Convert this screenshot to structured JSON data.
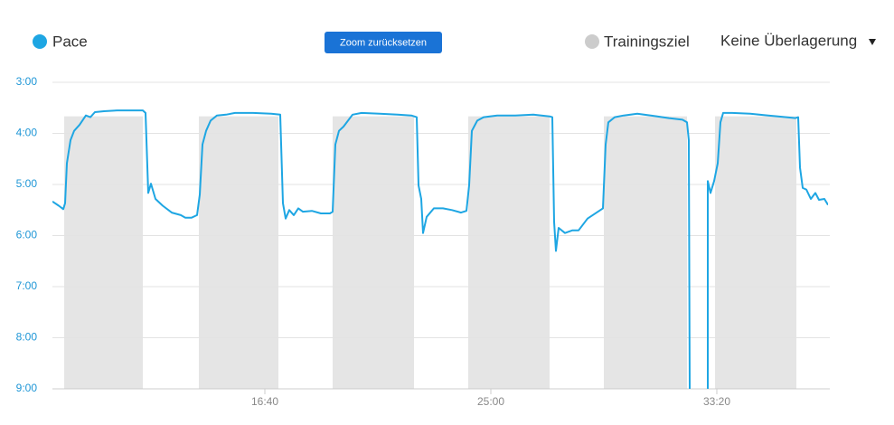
{
  "chart_data": {
    "type": "line",
    "zoom_button": "Zoom zurücksetzen",
    "overlay_select": "Keine Überlagerung",
    "xlim": [
      530,
      2246
    ],
    "xticks": [
      {
        "value": 1000,
        "label": "16:40"
      },
      {
        "value": 1500,
        "label": "25:00"
      },
      {
        "value": 2000,
        "label": "33:20"
      }
    ],
    "ylim": [
      180,
      540
    ],
    "y_inverted": true,
    "yticks": [
      {
        "value": 180,
        "label": "3:00"
      },
      {
        "value": 240,
        "label": "4:00"
      },
      {
        "value": 300,
        "label": "5:00"
      },
      {
        "value": 360,
        "label": "6:00"
      },
      {
        "value": 420,
        "label": "7:00"
      },
      {
        "value": 480,
        "label": "8:00"
      },
      {
        "value": 540,
        "label": "9:00"
      }
    ],
    "grid": true,
    "target": {
      "name": "Trainingsziel",
      "color": "#e5e5e5",
      "legend_color": "#cccccc",
      "value": 220,
      "ranges": [
        [
          556,
          730
        ],
        [
          854,
          1030
        ],
        [
          1150,
          1330
        ],
        [
          1450,
          1630
        ],
        [
          1750,
          1934
        ],
        [
          1996,
          2176
        ]
      ]
    },
    "series": [
      {
        "name": "Pace",
        "color": "#1ea6e3",
        "x": [
          530,
          544,
          554,
          558,
          562,
          570,
          578,
          590,
          604,
          614,
          624,
          644,
          674,
          704,
          730,
          736,
          742,
          748,
          758,
          774,
          794,
          814,
          824,
          838,
          850,
          856,
          862,
          870,
          880,
          894,
          914,
          934,
          974,
          1014,
          1034,
          1040,
          1046,
          1054,
          1064,
          1074,
          1084,
          1104,
          1124,
          1144,
          1150,
          1156,
          1164,
          1174,
          1194,
          1214,
          1254,
          1294,
          1324,
          1336,
          1340,
          1346,
          1350,
          1358,
          1374,
          1394,
          1414,
          1434,
          1446,
          1452,
          1458,
          1470,
          1484,
          1514,
          1554,
          1594,
          1630,
          1636,
          1640,
          1644,
          1650,
          1664,
          1680,
          1694,
          1714,
          1734,
          1748,
          1754,
          1760,
          1774,
          1794,
          1824,
          1854,
          1894,
          1924,
          1934,
          1938,
          1940,
          1960,
          1980,
          1980,
          1986,
          1994,
          2002,
          2008,
          2014,
          2034,
          2074,
          2114,
          2154,
          2174,
          2180,
          2184,
          2190,
          2198,
          2208,
          2218,
          2226,
          2238,
          2246
        ],
        "values": [
          320,
          325,
          329,
          322,
          275,
          248,
          237,
          230,
          219,
          221,
          215,
          214,
          213,
          213,
          213,
          216,
          310,
          299,
          317,
          325,
          333,
          336,
          339,
          339,
          336,
          312,
          253,
          237,
          225,
          219,
          218,
          216,
          216,
          217,
          218,
          322,
          340,
          330,
          336,
          328,
          332,
          331,
          334,
          334,
          332,
          253,
          237,
          232,
          218,
          216,
          217,
          218,
          219,
          221,
          301,
          317,
          357,
          338,
          328,
          328,
          330,
          333,
          331,
          301,
          237,
          225,
          221,
          219,
          219,
          218,
          220,
          221,
          344,
          378,
          351,
          357,
          354,
          354,
          340,
          333,
          328,
          253,
          227,
          221,
          219,
          217,
          219,
          222,
          224,
          227,
          248,
          540,
          null,
          540,
          296,
          310,
          296,
          275,
          227,
          216,
          216,
          217,
          219,
          221,
          222,
          221,
          280,
          304,
          306,
          317,
          310,
          318,
          317,
          324
        ]
      }
    ]
  }
}
